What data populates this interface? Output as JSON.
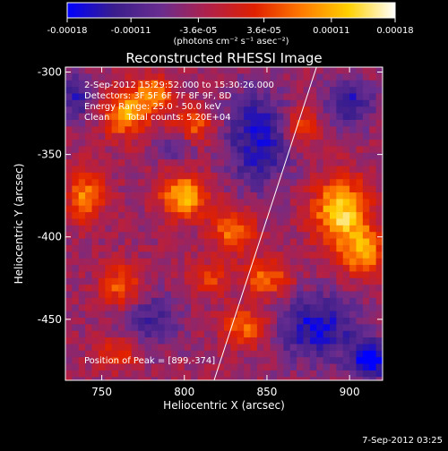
{
  "chart_data": {
    "type": "heatmap",
    "title": "Reconstructed RHESSI Image",
    "xlabel": "Heliocentric X (arcsec)",
    "ylabel": "Heliocentric Y (arcsec)",
    "xlim": [
      728,
      920
    ],
    "ylim": [
      -487,
      -297
    ],
    "xticks": [
      750,
      800,
      850,
      900
    ],
    "yticks": [
      -300,
      -350,
      -400,
      -450
    ],
    "colorbar": {
      "ticks": [
        -0.00018,
        -0.00011,
        -3.6e-05,
        3.6e-05,
        0.00011,
        0.00018
      ],
      "tick_labels": [
        "-0.00018",
        "-0.00011",
        "-3.6e-05",
        "3.6e-05",
        "0.00011",
        "0.00018"
      ],
      "unit_label": "(photons cm⁻² s⁻¹ asec⁻²)",
      "range": [
        -0.00018,
        0.00018
      ],
      "colormap": [
        "#0000ff",
        "#3a1d8c",
        "#6a2d8f",
        "#b0204a",
        "#e02000",
        "#ff7a00",
        "#ffd000",
        "#ffffff"
      ]
    },
    "annotations": [
      "2-Sep-2012 15:29:52.000 to 15:30:26.000",
      "Detectors: 3F 5F 6F 7F 8F 9F, 8D",
      "Energy Range: 25.0 - 50.0 keV",
      "Clean      Total counts: 5.20E+04"
    ],
    "peak_label": "Position of Peak = [899,-374]",
    "peak": [
      899,
      -374
    ],
    "limb_line": [
      [
        818,
        -487
      ],
      [
        880,
        -297
      ]
    ],
    "grid_cell_arcsec": 4,
    "bright_sources": [
      {
        "x": 800,
        "y": -375,
        "amp": 0.00016,
        "sx": 10,
        "sy": 9
      },
      {
        "x": 895,
        "y": -385,
        "amp": 0.00018,
        "sx": 12,
        "sy": 14
      },
      {
        "x": 908,
        "y": -410,
        "amp": 0.00013,
        "sx": 9,
        "sy": 10
      },
      {
        "x": 765,
        "y": -325,
        "amp": 0.00014,
        "sx": 10,
        "sy": 10
      },
      {
        "x": 782,
        "y": -312,
        "amp": 0.00012,
        "sx": 8,
        "sy": 7
      },
      {
        "x": 740,
        "y": -375,
        "amp": 0.00012,
        "sx": 8,
        "sy": 11
      },
      {
        "x": 830,
        "y": -397,
        "amp": 0.00012,
        "sx": 9,
        "sy": 9
      },
      {
        "x": 850,
        "y": -425,
        "amp": 0.00011,
        "sx": 10,
        "sy": 8
      },
      {
        "x": 838,
        "y": -455,
        "amp": 0.00012,
        "sx": 10,
        "sy": 8
      },
      {
        "x": 762,
        "y": -430,
        "amp": 0.0001,
        "sx": 9,
        "sy": 9
      },
      {
        "x": 760,
        "y": -470,
        "amp": 8e-05,
        "sx": 9,
        "sy": 7
      },
      {
        "x": 870,
        "y": -333,
        "amp": 9e-05,
        "sx": 8,
        "sy": 8
      },
      {
        "x": 805,
        "y": -333,
        "amp": 0.0001,
        "sx": 9,
        "sy": 8
      },
      {
        "x": 815,
        "y": -425,
        "amp": 8e-05,
        "sx": 8,
        "sy": 7
      }
    ],
    "dark_regions": [
      {
        "x": 845,
        "y": -340,
        "amp": 0.00012,
        "sx": 14,
        "sy": 20
      },
      {
        "x": 880,
        "y": -455,
        "amp": 0.00012,
        "sx": 18,
        "sy": 14
      },
      {
        "x": 912,
        "y": -475,
        "amp": 0.00016,
        "sx": 8,
        "sy": 8
      },
      {
        "x": 780,
        "y": -450,
        "amp": 8e-05,
        "sx": 12,
        "sy": 12
      },
      {
        "x": 735,
        "y": -315,
        "amp": 9e-05,
        "sx": 8,
        "sy": 10
      },
      {
        "x": 900,
        "y": -318,
        "amp": 0.0001,
        "sx": 10,
        "sy": 10
      },
      {
        "x": 795,
        "y": -345,
        "amp": 8e-05,
        "sx": 8,
        "sy": 6
      }
    ]
  },
  "footer": {
    "timestamp": "7-Sep-2012 03:25"
  }
}
